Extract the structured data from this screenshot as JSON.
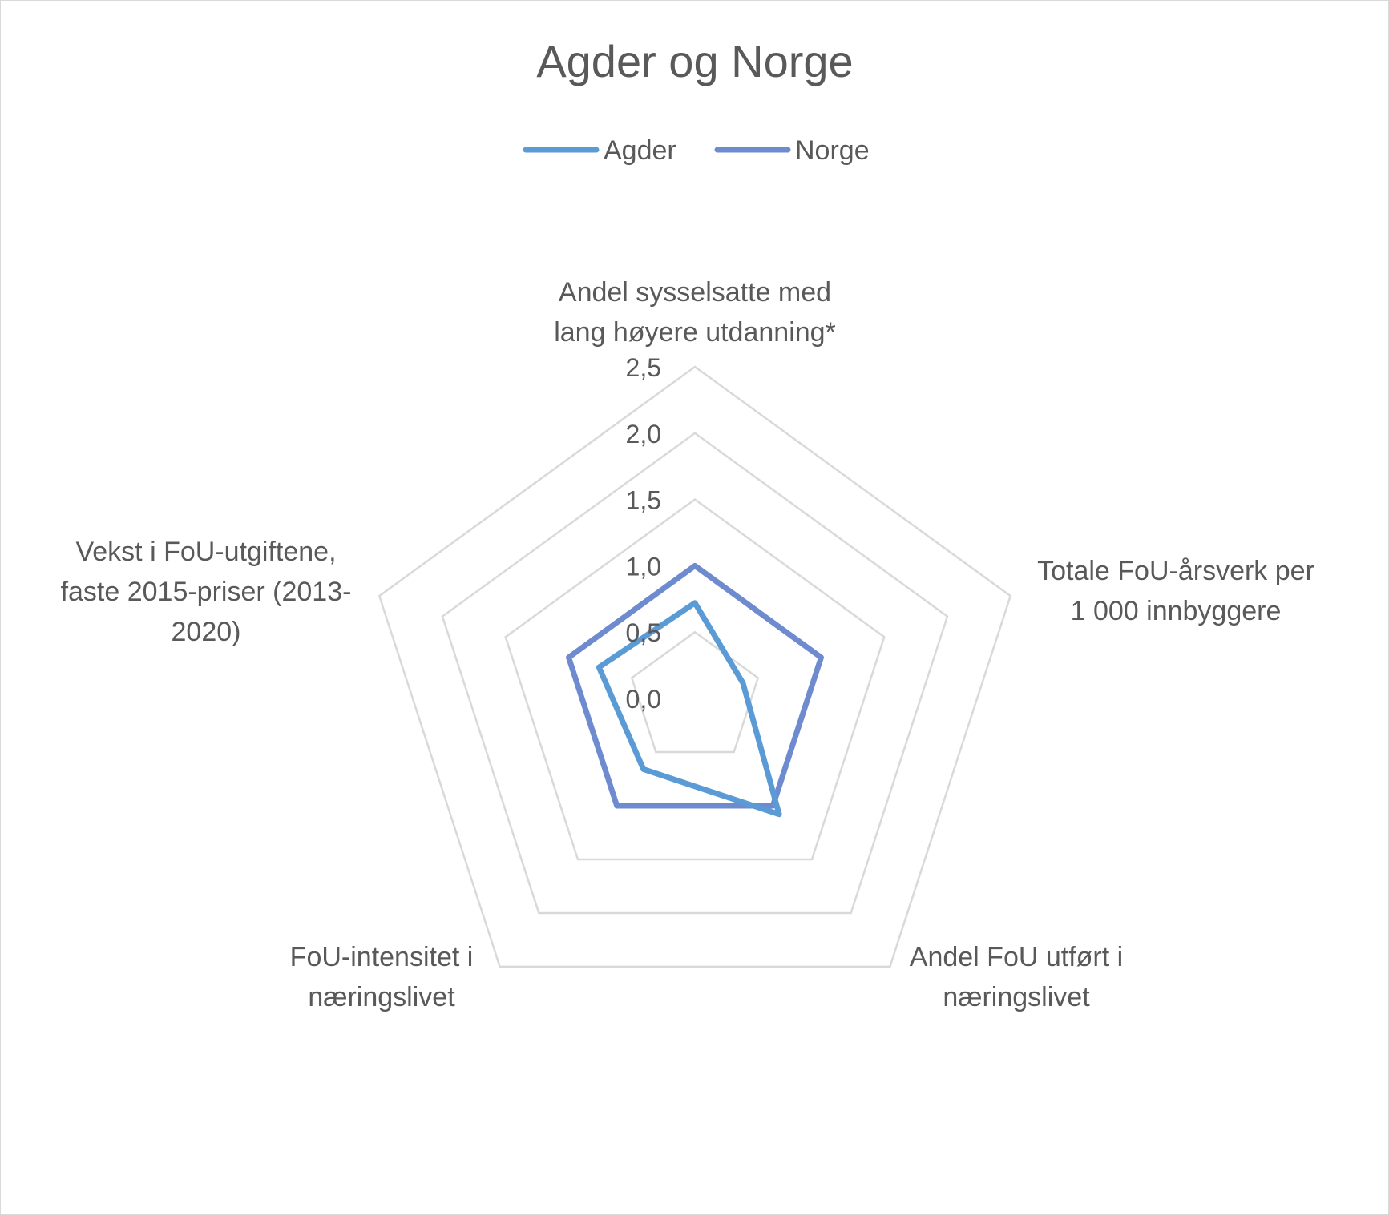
{
  "chart_data": {
    "type": "radar",
    "title": "Agder og Norge",
    "axes": [
      "Andel sysselsatte med lang høyere utdanning*",
      "Totale FoU-årsverk per 1 000 innbyggere",
      "Andel FoU utført i næringslivet",
      "FoU-intensitet i næringslivet",
      "Vekst i FoU-utgiftene, faste 2015-priser (2013-2020)"
    ],
    "axis_label_lines": [
      [
        "Andel sysselsatte med",
        "lang høyere utdanning*"
      ],
      [
        "Totale FoU-årsverk per",
        "1 000 innbyggere"
      ],
      [
        "Andel FoU utført i",
        "næringslivet"
      ],
      [
        "FoU-intensitet i",
        "næringslivet"
      ],
      [
        "Vekst i FoU-utgiftene,",
        "faste 2015-priser (2013-",
        "2020)"
      ]
    ],
    "r_ticks": [
      0.0,
      0.5,
      1.0,
      1.5,
      2.0,
      2.5
    ],
    "r_tick_labels": [
      "0,0",
      "0,5",
      "1,0",
      "1,5",
      "2,0",
      "2,5"
    ],
    "rlim": [
      0,
      2.5
    ],
    "grid": true,
    "legend_position": "top",
    "series": [
      {
        "name": "Agder",
        "color": "#5B9BD5",
        "values": [
          0.72,
          0.38,
          1.08,
          0.66,
          0.76
        ]
      },
      {
        "name": "Norge",
        "color": "#6F8BCF",
        "values": [
          1.0,
          1.0,
          1.0,
          1.0,
          1.0
        ]
      }
    ]
  }
}
